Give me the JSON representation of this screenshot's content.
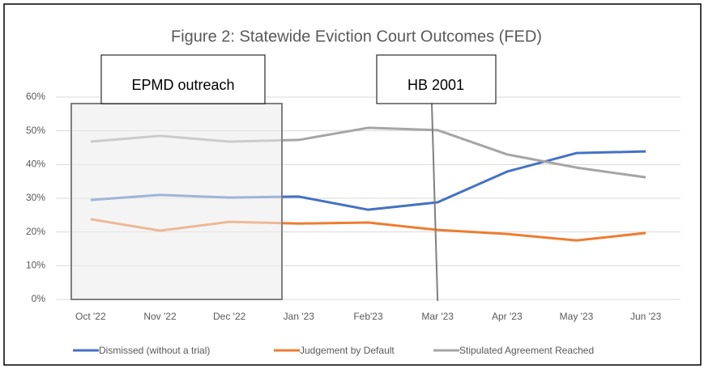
{
  "chart_data": {
    "type": "line",
    "title": "Figure 2: Statewide Eviction Court Outcomes (FED)",
    "categories": [
      "Oct '22",
      "Nov '22",
      "Dec '22",
      "Jan '23",
      "Feb'23",
      "Mar '23",
      "Apr '23",
      "May '23",
      "Jun '23"
    ],
    "series": [
      {
        "name": "Dismissed (without a trial)",
        "color": "#4472c4",
        "values": [
          29.5,
          31,
          30.2,
          30.5,
          26.6,
          28.8,
          37.9,
          43.4,
          43.9
        ]
      },
      {
        "name": "Judgement by Default",
        "color": "#ed7d31",
        "values": [
          23.8,
          20.4,
          23,
          22.5,
          22.8,
          20.6,
          19.4,
          17.5,
          19.7
        ]
      },
      {
        "name": "Stipulated Agreement Reached",
        "color": "#a5a5a5",
        "values": [
          46.8,
          48.5,
          46.8,
          47.3,
          50.9,
          50.2,
          43,
          39.1,
          36.2
        ]
      }
    ],
    "ylim": [
      0,
      60
    ],
    "yticks": [
      {
        "value": 0,
        "label": "0%"
      },
      {
        "value": 10,
        "label": "10%"
      },
      {
        "value": 20,
        "label": "20%"
      },
      {
        "value": 30,
        "label": "30%"
      },
      {
        "value": 40,
        "label": "40%"
      },
      {
        "value": 50,
        "label": "50%"
      },
      {
        "value": 60,
        "label": "60%"
      }
    ],
    "grid": true,
    "legend": "bottom",
    "annotations": [
      {
        "text": "EPMD outreach"
      },
      {
        "text": "HB 2001"
      }
    ]
  }
}
